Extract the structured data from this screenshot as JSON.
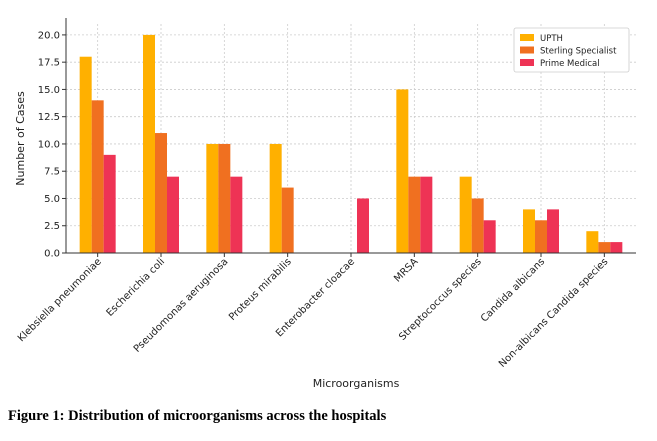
{
  "chart_data": {
    "type": "bar",
    "xlabel": "Microorganisms",
    "ylabel": "Number of Cases",
    "ylim": [
      0,
      21
    ],
    "yticks": [
      "0.0",
      "2.5",
      "5.0",
      "7.5",
      "10.0",
      "12.5",
      "15.0",
      "17.5",
      "20.0"
    ],
    "grid": true,
    "legend_position": "top-right",
    "categories": [
      "Klebsiella pneumoniae",
      "Escherichia coli",
      "Pseudomonas aeruginosa",
      "Proteus mirabilis",
      "Enterobacter cloacae",
      "MRSA",
      "Streptococcus species",
      "Candida albicans",
      "Non-albicans Candida species"
    ],
    "series": [
      {
        "name": "UPTH",
        "color": "#FFB000",
        "values": [
          18,
          20,
          10,
          10,
          0,
          15,
          7,
          4,
          2
        ]
      },
      {
        "name": "Sterling Specialist",
        "color": "#F07020",
        "values": [
          14,
          11,
          10,
          6,
          0,
          7,
          5,
          3,
          1
        ]
      },
      {
        "name": "Prime Medical",
        "color": "#EE3355",
        "values": [
          9,
          7,
          7,
          0,
          5,
          7,
          3,
          4,
          1
        ]
      }
    ]
  },
  "caption": "Figure 1: Distribution of microorganisms across the hospitals"
}
